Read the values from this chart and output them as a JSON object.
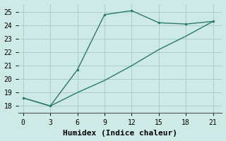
{
  "line1_x": [
    0,
    3,
    6,
    9,
    12,
    15,
    18,
    21
  ],
  "line1_y": [
    18.6,
    18.0,
    20.7,
    24.8,
    25.1,
    24.2,
    24.1,
    24.3
  ],
  "line2_x": [
    0,
    3,
    6,
    9,
    12,
    15,
    18,
    21
  ],
  "line2_y": [
    18.6,
    18.0,
    19.0,
    19.9,
    21.0,
    22.2,
    23.2,
    24.3
  ],
  "line_color": "#2a7a6a",
  "background_color": "#ceeae6",
  "grid_color": "#aaceca",
  "xlabel": "Humidex (Indice chaleur)",
  "xlim": [
    -0.5,
    22
  ],
  "ylim": [
    17.5,
    25.6
  ],
  "xticks": [
    0,
    3,
    6,
    9,
    12,
    15,
    18,
    21
  ],
  "yticks": [
    18,
    19,
    20,
    21,
    22,
    23,
    24,
    25
  ],
  "xlabel_fontsize": 8,
  "tick_fontsize": 7,
  "font_family": "monospace"
}
